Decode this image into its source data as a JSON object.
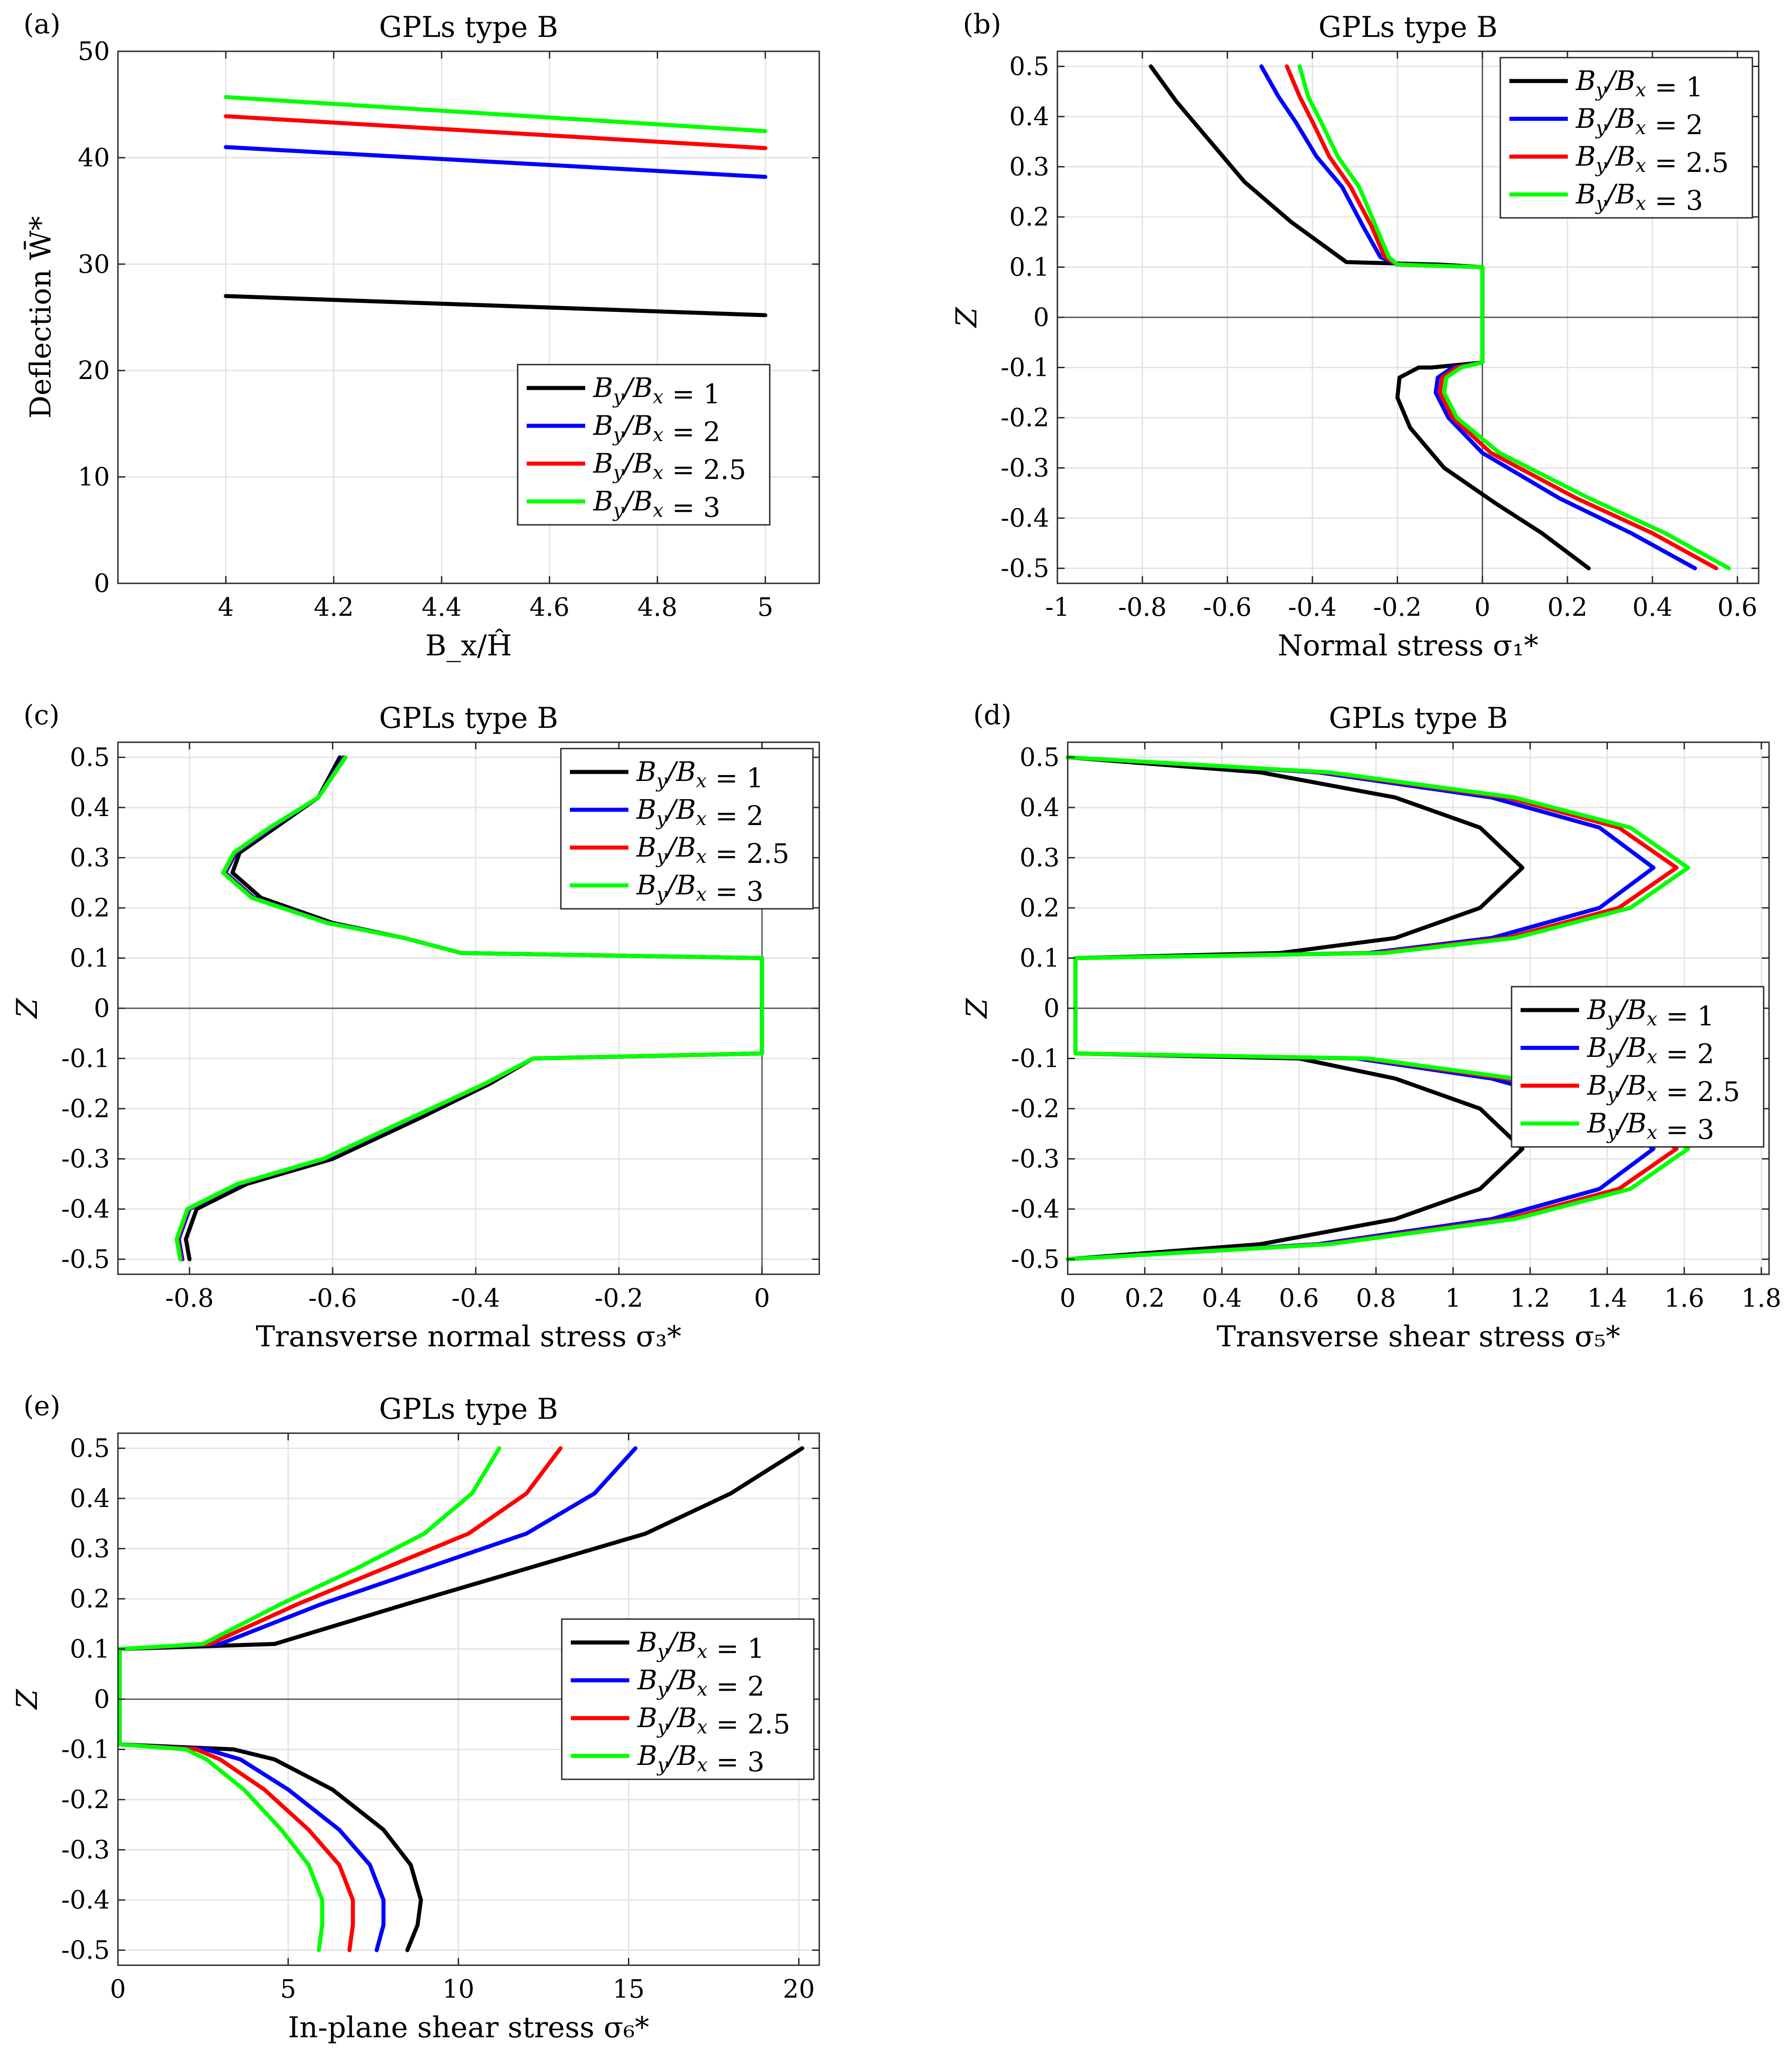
{
  "figure_title": "GPLs type B",
  "chart_data": [
    {
      "id": "a",
      "panel_label": "(a)",
      "type": "line",
      "title": "GPLs type B",
      "xlabel": "B_x/Ĥ",
      "ylabel": "Deflection W̄*",
      "xlim": [
        3.8,
        5.1
      ],
      "ylim": [
        0,
        50
      ],
      "xticks": [
        4,
        4.2,
        4.4,
        4.6,
        4.8,
        5
      ],
      "xtick_labels": [
        "4",
        "4.2",
        "4.4",
        "4.6",
        "4.8",
        "5"
      ],
      "yticks": [
        0,
        10,
        20,
        30,
        40,
        50
      ],
      "ytick_labels": [
        "0",
        "10",
        "20",
        "30",
        "40",
        "50"
      ],
      "grid": true,
      "legend_position": "bottom-right",
      "series": [
        {
          "name": "B_y/B_x = 1",
          "color": "#000000",
          "x": [
            4,
            5
          ],
          "y": [
            27.0,
            25.2
          ]
        },
        {
          "name": "B_y/B_x = 2",
          "color": "#0000ff",
          "x": [
            4,
            5
          ],
          "y": [
            41.0,
            38.2
          ]
        },
        {
          "name": "B_y/B_x = 2.5",
          "color": "#ff0000",
          "x": [
            4,
            5
          ],
          "y": [
            43.9,
            40.9
          ]
        },
        {
          "name": "B_y/B_x = 3",
          "color": "#00ff00",
          "x": [
            4,
            5
          ],
          "y": [
            45.7,
            42.5
          ]
        }
      ]
    },
    {
      "id": "b",
      "panel_label": "(b)",
      "type": "line",
      "title": "GPLs type B",
      "xlabel": "Normal stress σ₁*",
      "ylabel": "Z",
      "xlim": [
        -1,
        0.65
      ],
      "ylim": [
        -0.53,
        0.53
      ],
      "xticks": [
        -1,
        -0.8,
        -0.6,
        -0.4,
        -0.2,
        0,
        0.2,
        0.4,
        0.6
      ],
      "xtick_labels": [
        "-1",
        "-0.8",
        "-0.6",
        "-0.4",
        "-0.2",
        "0",
        "0.2",
        "0.4",
        "0.6"
      ],
      "yticks": [
        -0.5,
        -0.4,
        -0.3,
        -0.2,
        -0.1,
        0,
        0.1,
        0.2,
        0.3,
        0.4,
        0.5
      ],
      "ytick_labels": [
        "-0.5",
        "-0.4",
        "-0.3",
        "-0.2",
        "-0.1",
        "0",
        "0.1",
        "0.2",
        "0.3",
        "0.4",
        "0.5"
      ],
      "zero_line": {
        "x": 0,
        "y": 0
      },
      "grid": true,
      "legend_position": "top-right",
      "series": [
        {
          "name": "B_y/B_x = 1",
          "color": "#000000",
          "x": [
            0.25,
            0.14,
            0.03,
            -0.09,
            -0.17,
            -0.2,
            -0.195,
            -0.15,
            -0.12,
            0,
            0,
            -0.1,
            -0.32,
            -0.45,
            -0.56,
            -0.64,
            -0.72,
            -0.78
          ],
          "y": [
            -0.5,
            -0.43,
            -0.37,
            -0.3,
            -0.22,
            -0.16,
            -0.12,
            -0.1,
            -0.1,
            -0.09,
            0.1,
            0.105,
            0.11,
            0.19,
            0.27,
            0.35,
            0.43,
            0.5
          ]
        },
        {
          "name": "B_y/B_x = 2",
          "color": "#0000ff",
          "x": [
            0.5,
            0.35,
            0.18,
            0.0,
            -0.08,
            -0.11,
            -0.105,
            -0.07,
            0,
            0,
            -0.2,
            -0.24,
            -0.28,
            -0.33,
            -0.39,
            -0.44,
            -0.48,
            -0.52
          ],
          "y": [
            -0.5,
            -0.43,
            -0.36,
            -0.27,
            -0.2,
            -0.15,
            -0.12,
            -0.1,
            -0.09,
            0.1,
            0.105,
            0.12,
            0.18,
            0.26,
            0.32,
            0.39,
            0.44,
            0.5
          ]
        },
        {
          "name": "B_y/B_x = 2.5",
          "color": "#ff0000",
          "x": [
            0.55,
            0.4,
            0.22,
            0.02,
            -0.07,
            -0.1,
            -0.095,
            -0.06,
            0,
            0,
            -0.2,
            -0.23,
            -0.26,
            -0.31,
            -0.36,
            -0.4,
            -0.43,
            -0.46
          ],
          "y": [
            -0.5,
            -0.43,
            -0.36,
            -0.27,
            -0.2,
            -0.15,
            -0.12,
            -0.1,
            -0.09,
            0.1,
            0.105,
            0.12,
            0.18,
            0.26,
            0.32,
            0.39,
            0.44,
            0.5
          ]
        },
        {
          "name": "B_y/B_x = 3",
          "color": "#00ff00",
          "x": [
            0.58,
            0.43,
            0.25,
            0.04,
            -0.06,
            -0.09,
            -0.085,
            -0.05,
            0,
            0,
            -0.2,
            -0.22,
            -0.25,
            -0.29,
            -0.34,
            -0.38,
            -0.41,
            -0.43
          ],
          "y": [
            -0.5,
            -0.43,
            -0.36,
            -0.27,
            -0.2,
            -0.15,
            -0.12,
            -0.1,
            -0.09,
            0.1,
            0.105,
            0.12,
            0.18,
            0.26,
            0.32,
            0.39,
            0.44,
            0.5
          ]
        }
      ]
    },
    {
      "id": "c",
      "panel_label": "(c)",
      "type": "line",
      "title": "GPLs type B",
      "xlabel": "Transverse normal stress σ₃*",
      "ylabel": "Z",
      "xlim": [
        -0.9,
        0.08
      ],
      "ylim": [
        -0.53,
        0.53
      ],
      "xticks": [
        -0.8,
        -0.6,
        -0.4,
        -0.2,
        0
      ],
      "xtick_labels": [
        "-0.8",
        "-0.6",
        "-0.4",
        "-0.2",
        "0"
      ],
      "yticks": [
        -0.5,
        -0.4,
        -0.3,
        -0.2,
        -0.1,
        0,
        0.1,
        0.2,
        0.3,
        0.4,
        0.5
      ],
      "ytick_labels": [
        "-0.5",
        "-0.4",
        "-0.3",
        "-0.2",
        "-0.1",
        "0",
        "0.1",
        "0.2",
        "0.3",
        "0.4",
        "0.5"
      ],
      "zero_line": {
        "x": 0,
        "y": 0
      },
      "grid": true,
      "legend_position": "top-right",
      "series": [
        {
          "name": "B_y/B_x = 1",
          "color": "#000000",
          "x": [
            -0.8,
            -0.805,
            -0.79,
            -0.72,
            -0.6,
            -0.48,
            -0.38,
            -0.32,
            0,
            0,
            -0.42,
            -0.5,
            -0.6,
            -0.7,
            -0.74,
            -0.73,
            -0.68,
            -0.62,
            -0.59
          ],
          "y": [
            -0.5,
            -0.46,
            -0.4,
            -0.35,
            -0.3,
            -0.22,
            -0.15,
            -0.1,
            -0.09,
            0.1,
            0.11,
            0.14,
            0.17,
            0.22,
            0.27,
            0.31,
            0.36,
            0.42,
            0.5
          ]
        },
        {
          "name": "B_y/B_x = 2",
          "color": "#0000ff",
          "x": [
            -0.81,
            -0.815,
            -0.8,
            -0.73,
            -0.61,
            -0.49,
            -0.385,
            -0.32,
            0,
            0,
            -0.42,
            -0.5,
            -0.605,
            -0.71,
            -0.75,
            -0.735,
            -0.685,
            -0.62,
            -0.585
          ],
          "y": [
            -0.5,
            -0.46,
            -0.4,
            -0.35,
            -0.3,
            -0.22,
            -0.15,
            -0.1,
            -0.09,
            0.1,
            0.11,
            0.14,
            0.17,
            0.22,
            0.27,
            0.31,
            0.36,
            0.42,
            0.5
          ]
        },
        {
          "name": "B_y/B_x = 2.5",
          "color": "#ff0000",
          "x": [
            -0.812,
            -0.817,
            -0.802,
            -0.732,
            -0.612,
            -0.492,
            -0.386,
            -0.32,
            0,
            0,
            -0.42,
            -0.5,
            -0.607,
            -0.712,
            -0.752,
            -0.737,
            -0.687,
            -0.62,
            -0.583
          ],
          "y": [
            -0.5,
            -0.46,
            -0.4,
            -0.35,
            -0.3,
            -0.22,
            -0.15,
            -0.1,
            -0.09,
            0.1,
            0.11,
            0.14,
            0.17,
            0.22,
            0.27,
            0.31,
            0.36,
            0.42,
            0.5
          ]
        },
        {
          "name": "B_y/B_x = 3",
          "color": "#00ff00",
          "x": [
            -0.813,
            -0.818,
            -0.803,
            -0.733,
            -0.613,
            -0.493,
            -0.387,
            -0.32,
            0,
            0,
            -0.42,
            -0.5,
            -0.608,
            -0.713,
            -0.753,
            -0.738,
            -0.688,
            -0.62,
            -0.582
          ],
          "y": [
            -0.5,
            -0.46,
            -0.4,
            -0.35,
            -0.3,
            -0.22,
            -0.15,
            -0.1,
            -0.09,
            0.1,
            0.11,
            0.14,
            0.17,
            0.22,
            0.27,
            0.31,
            0.36,
            0.42,
            0.5
          ]
        }
      ]
    },
    {
      "id": "d",
      "panel_label": "(d)",
      "type": "line",
      "title": "GPLs type B",
      "xlabel": "Transverse shear stress σ₅*",
      "ylabel": "Z",
      "xlim": [
        0,
        1.82
      ],
      "ylim": [
        -0.53,
        0.53
      ],
      "xticks": [
        0,
        0.2,
        0.4,
        0.6,
        0.8,
        1,
        1.2,
        1.4,
        1.6,
        1.8
      ],
      "xtick_labels": [
        "0",
        "0.2",
        "0.4",
        "0.6",
        "0.8",
        "1",
        "1.2",
        "1.4",
        "1.6",
        "1.8"
      ],
      "yticks": [
        -0.5,
        -0.4,
        -0.3,
        -0.2,
        -0.1,
        0,
        0.1,
        0.2,
        0.3,
        0.4,
        0.5
      ],
      "ytick_labels": [
        "-0.5",
        "-0.4",
        "-0.3",
        "-0.2",
        "-0.1",
        "0",
        "0.1",
        "0.2",
        "0.3",
        "0.4",
        "0.5"
      ],
      "zero_line": {
        "x": null,
        "y": 0
      },
      "grid": true,
      "legend_position": "right",
      "series": [
        {
          "name": "B_y/B_x = 1",
          "color": "#000000",
          "x": [
            0,
            0.5,
            0.85,
            1.07,
            1.18,
            1.07,
            0.85,
            0.6,
            0.02,
            0.02,
            0.55,
            0.85,
            1.07,
            1.18,
            1.07,
            0.85,
            0.5,
            0
          ],
          "y": [
            -0.5,
            -0.47,
            -0.42,
            -0.36,
            -0.28,
            -0.2,
            -0.14,
            -0.1,
            -0.09,
            0.1,
            0.11,
            0.14,
            0.2,
            0.28,
            0.36,
            0.42,
            0.47,
            0.5
          ]
        },
        {
          "name": "B_y/B_x = 2",
          "color": "#0000ff",
          "x": [
            0,
            0.65,
            1.1,
            1.38,
            1.52,
            1.38,
            1.1,
            0.75,
            0.02,
            0.02,
            0.78,
            1.1,
            1.38,
            1.52,
            1.38,
            1.1,
            0.65,
            0
          ],
          "y": [
            -0.5,
            -0.47,
            -0.42,
            -0.36,
            -0.28,
            -0.2,
            -0.14,
            -0.1,
            -0.09,
            0.1,
            0.11,
            0.14,
            0.2,
            0.28,
            0.36,
            0.42,
            0.47,
            0.5
          ]
        },
        {
          "name": "B_y/B_x = 2.5",
          "color": "#ff0000",
          "x": [
            0,
            0.67,
            1.14,
            1.43,
            1.58,
            1.43,
            1.14,
            0.77,
            0.02,
            0.02,
            0.8,
            1.14,
            1.43,
            1.58,
            1.43,
            1.14,
            0.67,
            0
          ],
          "y": [
            -0.5,
            -0.47,
            -0.42,
            -0.36,
            -0.28,
            -0.2,
            -0.14,
            -0.1,
            -0.09,
            0.1,
            0.11,
            0.14,
            0.2,
            0.28,
            0.36,
            0.42,
            0.47,
            0.5
          ]
        },
        {
          "name": "B_y/B_x = 3",
          "color": "#00ff00",
          "x": [
            0,
            0.68,
            1.16,
            1.46,
            1.61,
            1.46,
            1.16,
            0.78,
            0.02,
            0.02,
            0.82,
            1.16,
            1.46,
            1.61,
            1.46,
            1.16,
            0.68,
            0
          ],
          "y": [
            -0.5,
            -0.47,
            -0.42,
            -0.36,
            -0.28,
            -0.2,
            -0.14,
            -0.1,
            -0.09,
            0.1,
            0.11,
            0.14,
            0.2,
            0.28,
            0.36,
            0.42,
            0.47,
            0.5
          ]
        }
      ]
    },
    {
      "id": "e",
      "panel_label": "(e)",
      "type": "line",
      "title": "GPLs type B",
      "xlabel": "In-plane shear stress σ₆*",
      "ylabel": "Z",
      "xlim": [
        0,
        20.6
      ],
      "ylim": [
        -0.53,
        0.53
      ],
      "xticks": [
        0,
        5,
        10,
        15,
        20
      ],
      "xtick_labels": [
        "0",
        "5",
        "10",
        "15",
        "20"
      ],
      "yticks": [
        -0.5,
        -0.4,
        -0.3,
        -0.2,
        -0.1,
        0,
        0.1,
        0.2,
        0.3,
        0.4,
        0.5
      ],
      "ytick_labels": [
        "-0.5",
        "-0.4",
        "-0.3",
        "-0.2",
        "-0.1",
        "0",
        "0.1",
        "0.2",
        "0.3",
        "0.4",
        "0.5"
      ],
      "zero_line": {
        "x": null,
        "y": 0
      },
      "grid": true,
      "legend_position": "right",
      "series": [
        {
          "name": "B_y/B_x = 1",
          "color": "#000000",
          "x": [
            8.5,
            8.8,
            8.9,
            8.6,
            7.8,
            6.3,
            4.6,
            3.4,
            0.05,
            0.05,
            4.6,
            8.5,
            12.0,
            15.5,
            18.0,
            20.1
          ],
          "y": [
            -0.5,
            -0.45,
            -0.4,
            -0.33,
            -0.26,
            -0.18,
            -0.12,
            -0.1,
            -0.09,
            0.1,
            0.11,
            0.19,
            0.26,
            0.33,
            0.41,
            0.5
          ]
        },
        {
          "name": "B_y/B_x = 2",
          "color": "#0000ff",
          "x": [
            7.6,
            7.8,
            7.8,
            7.4,
            6.5,
            5.0,
            3.6,
            2.6,
            0.05,
            0.05,
            3.0,
            6.0,
            9.0,
            12.0,
            14.0,
            15.2
          ],
          "y": [
            -0.5,
            -0.45,
            -0.4,
            -0.33,
            -0.26,
            -0.18,
            -0.12,
            -0.1,
            -0.09,
            0.1,
            0.11,
            0.19,
            0.26,
            0.33,
            0.41,
            0.5
          ]
        },
        {
          "name": "B_y/B_x = 2.5",
          "color": "#ff0000",
          "x": [
            6.8,
            6.9,
            6.9,
            6.5,
            5.6,
            4.3,
            3.0,
            2.3,
            0.05,
            0.05,
            2.7,
            5.3,
            7.8,
            10.3,
            12.0,
            13.0
          ],
          "y": [
            -0.5,
            -0.45,
            -0.4,
            -0.33,
            -0.26,
            -0.18,
            -0.12,
            -0.1,
            -0.09,
            0.1,
            0.11,
            0.19,
            0.26,
            0.33,
            0.41,
            0.5
          ]
        },
        {
          "name": "B_y/B_x = 3",
          "color": "#00ff00",
          "x": [
            5.9,
            6.0,
            6.0,
            5.6,
            4.8,
            3.7,
            2.6,
            2.0,
            0.05,
            0.05,
            2.5,
            4.8,
            7.0,
            9.0,
            10.4,
            11.2
          ],
          "y": [
            -0.5,
            -0.45,
            -0.4,
            -0.33,
            -0.26,
            -0.18,
            -0.12,
            -0.1,
            -0.09,
            0.1,
            0.11,
            0.19,
            0.26,
            0.33,
            0.41,
            0.5
          ]
        }
      ]
    }
  ]
}
